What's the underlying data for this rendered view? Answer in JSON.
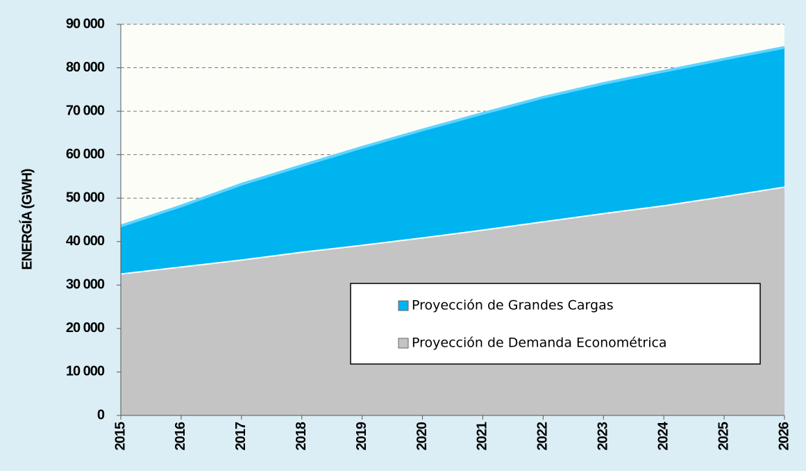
{
  "chart_data": {
    "type": "stacked_area",
    "y_label": "ENERGÍA (GWH)",
    "x": [
      2015,
      2016,
      2017,
      2018,
      2019,
      2020,
      2021,
      2022,
      2023,
      2024,
      2025,
      2026
    ],
    "xlim": [
      2015,
      2026
    ],
    "series": [
      {
        "name": "Proyección de Demanda Econométrica",
        "color": "#c4c4c4",
        "values": [
          32700,
          34300,
          35900,
          37700,
          39300,
          41000,
          42800,
          44700,
          46600,
          48400,
          50500,
          52700
        ]
      },
      {
        "name": "Proyección de Grandes Cargas",
        "color": "#00b4f0",
        "values": [
          10900,
          13900,
          17300,
          19800,
          22400,
          24700,
          26700,
          28500,
          29800,
          30800,
          31500,
          32000
        ]
      }
    ],
    "ylim": [
      0,
      90000
    ],
    "yticks": [
      0,
      {
        "value": 10000,
        "label": "10 000"
      },
      {
        "value": 20000,
        "label": "20 000"
      },
      {
        "value": 30000,
        "label": "30 000"
      },
      {
        "value": 40000,
        "label": "40 000"
      },
      {
        "value": 50000,
        "label": "50 000"
      },
      {
        "value": 60000,
        "label": "60 000"
      },
      {
        "value": 70000,
        "label": "70 000"
      },
      {
        "value": 80000,
        "label": "80 000"
      },
      {
        "value": 90000,
        "label": "90 000"
      }
    ],
    "grid": true
  }
}
